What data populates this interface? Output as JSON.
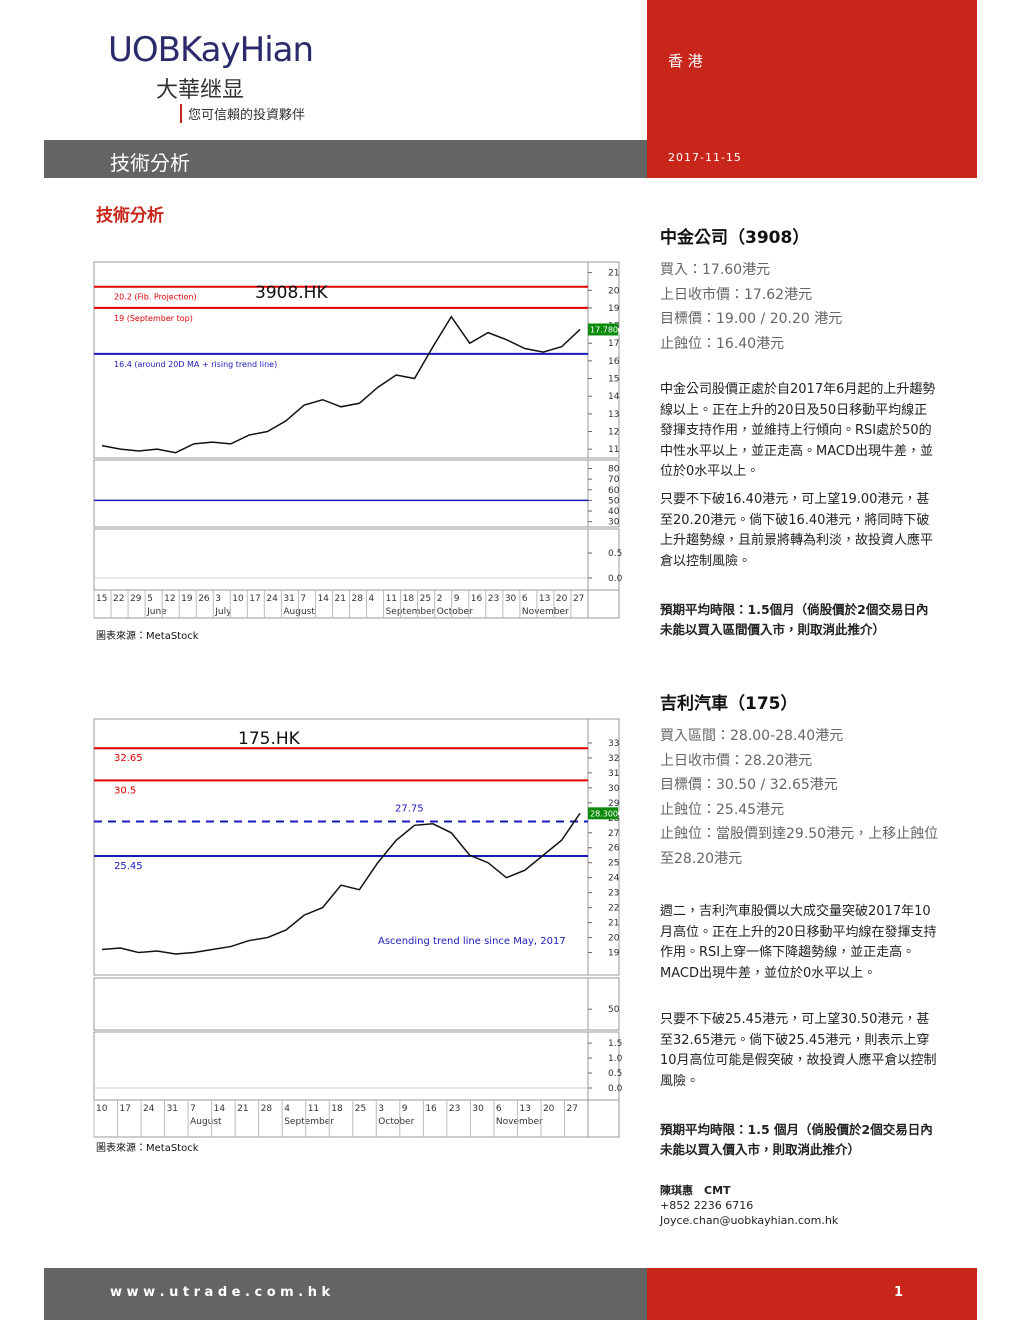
{
  "header": {
    "brand": "UOBKayHian",
    "brand_cn": "大華继显",
    "tagline": "您可信賴的投資夥伴",
    "region": "香 港",
    "section": "技術分析",
    "date": "2017-11-15"
  },
  "heading": "技術分析",
  "stocks": [
    {
      "name": "中金公司（3908）",
      "details": [
        "買入：17.60港元",
        "上日收市價：17.62港元",
        "目標價：19.00 / 20.20 港元",
        "止蝕位：16.40港元"
      ],
      "paragraphs": [
        "中金公司股價正處於自2017年6月起的上升趨勢線以上。正在上升的20日及50日移動平均線正發揮支持作用，並維持上行傾向。RSI處於50的中性水平以上，並正走高。MACD出現牛差，並位於0水平以上。",
        "只要不下破16.40港元，可上望19.00港元，甚至20.20港元。倘下破16.40港元，將同時下破上升趨勢線，且前景將轉為利淡，故投資人應平倉以控制風險。"
      ],
      "holding": "預期平均時限：1.5個月（倘股價於2個交易日內未能以買入區間價入市，則取消此推介）"
    },
    {
      "name": "吉利汽車（175）",
      "details": [
        "買入區間：28.00-28.40港元",
        "上日收市價：28.20港元",
        "目標價：30.50 / 32.65港元",
        "止蝕位：25.45港元",
        "止蝕位：當股價到達29.50港元，上移止蝕位至28.20港元"
      ],
      "paragraphs": [
        "週二，吉利汽車股價以大成交量突破2017年10月高位。正在上升的20日移動平均線在發揮支持作用。RSI上穿一條下降趨勢線，並正走高。MACD出現牛差，並位於0水平以上。",
        "只要不下破25.45港元，可上望30.50港元，甚至32.65港元。倘下破25.45港元，則表示上穿10月高位可能是假突破，故投資人應平倉以控制風險。"
      ],
      "holding": "預期平均時限：1.5 個月（倘股價於2個交易日內未能以買入價入市，則取消此推介）"
    }
  ],
  "charts": [
    {
      "symbol": "3908.HK",
      "source": "圖表來源：MetaStock",
      "ylim": [
        10.5,
        21.6
      ],
      "yticks": [
        21,
        20,
        19,
        18,
        17,
        16,
        15,
        14,
        13,
        12,
        11
      ],
      "levels": [
        {
          "value": 20.2,
          "label": "20.2 (Fib. Projection)",
          "color": "#e00000"
        },
        {
          "value": 19,
          "label": "19 (September top)",
          "color": "#e00000"
        },
        {
          "value": 16.4,
          "label": "16.4 (around 20D MA + rising trend line)",
          "color": "#1a1ab8"
        }
      ],
      "closes": [
        11.2,
        11.0,
        10.9,
        11.0,
        10.8,
        11.3,
        11.4,
        11.3,
        11.8,
        12.0,
        12.6,
        13.5,
        13.8,
        13.4,
        13.6,
        14.5,
        15.2,
        15.0,
        16.8,
        18.5,
        17.0,
        17.6,
        17.2,
        16.7,
        16.5,
        16.8,
        17.78
      ],
      "last": {
        "value": 17.78,
        "label": "17.7800"
      },
      "rsi_ylim": [
        25,
        88
      ],
      "rsi_ticks": [
        80,
        70,
        60,
        50,
        40,
        30
      ],
      "rsi_line": 50,
      "macd_ylim": [
        -0.24,
        0.98
      ],
      "macd_ticks": [
        0.5,
        {
          "value": 0,
          "label": "0.0"
        }
      ],
      "days": [
        "15",
        "22",
        "29",
        "5",
        "12",
        "19",
        "26",
        "3",
        "10",
        "17",
        "24",
        "31",
        "7",
        "14",
        "21",
        "28",
        "4",
        "11",
        "18",
        "25",
        "2",
        "9",
        "16",
        "23",
        "30",
        "6",
        "13",
        "20",
        "27"
      ],
      "months": [
        null,
        null,
        null,
        "June",
        null,
        null,
        null,
        "July",
        null,
        null,
        null,
        "August",
        null,
        null,
        null,
        null,
        null,
        "September",
        null,
        null,
        "October",
        null,
        null,
        null,
        null,
        "November",
        null,
        null,
        null
      ]
    },
    {
      "symbol": "175.HK",
      "source": "圖表來源：MetaStock",
      "ylim": [
        17.5,
        34.6
      ],
      "yticks": [
        33,
        32,
        31,
        30,
        29,
        28,
        27,
        26,
        25,
        24,
        23,
        22,
        21,
        20,
        19
      ],
      "levels": [
        {
          "value": 32.65,
          "label": "32.65",
          "color": "#e00000"
        },
        {
          "value": 30.5,
          "label": "30.5",
          "color": "#e00000"
        },
        {
          "value": 27.75,
          "label": "27.75",
          "color": "#1a1ab8",
          "dashed": true
        },
        {
          "value": 25.45,
          "label": "25.45",
          "color": "#1a1ab8"
        }
      ],
      "closes": [
        19.2,
        19.3,
        19.0,
        19.1,
        18.9,
        19.0,
        19.2,
        19.4,
        19.8,
        20.0,
        20.5,
        21.5,
        22.0,
        23.5,
        23.2,
        25.0,
        26.5,
        27.5,
        27.6,
        27.0,
        25.5,
        25.0,
        24.0,
        24.5,
        25.5,
        26.5,
        28.3
      ],
      "last": {
        "value": 28.3,
        "label": "28.3000"
      },
      "annotation": "Ascending trend line since May, 2017",
      "rsi_ylim": [
        20,
        95
      ],
      "rsi_ticks": [
        50
      ],
      "macd_ylim": [
        -0.4,
        1.87
      ],
      "macd_ticks": [
        1.5,
        {
          "value": 1,
          "label": "1.0"
        },
        0.5,
        {
          "value": 0,
          "label": "0.0"
        }
      ],
      "days": [
        "10",
        "17",
        "24",
        "31",
        "7",
        "14",
        "21",
        "28",
        "4",
        "11",
        "18",
        "25",
        "3",
        "9",
        "16",
        "23",
        "30",
        "6",
        "13",
        "20",
        "27"
      ],
      "months": [
        null,
        null,
        null,
        null,
        "August",
        null,
        null,
        null,
        "September",
        null,
        null,
        null,
        "October",
        null,
        null,
        null,
        null,
        "November",
        null,
        null,
        null
      ]
    }
  ],
  "contact": {
    "name": "陳琪惠　CMT",
    "phone": "+852 2236 6716",
    "email": "Joyce.chan@uobkayhian.com.hk"
  },
  "footer": {
    "url": "w w w . u t r a d e . c o m . h k",
    "page": "1"
  }
}
